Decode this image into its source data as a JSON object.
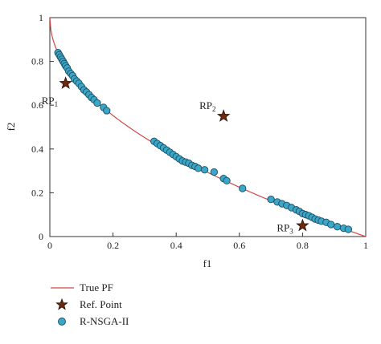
{
  "chart_data": {
    "type": "scatter",
    "xlabel": "f1",
    "ylabel": "f2",
    "xlim": [
      0,
      1
    ],
    "ylim": [
      0,
      1
    ],
    "xticks": [
      "0",
      "0.2",
      "0.4",
      "0.6",
      "0.8",
      "1"
    ],
    "yticks": [
      "0",
      "0.2",
      "0.4",
      "0.6",
      "0.8",
      "1"
    ],
    "grid": false,
    "legend_position": "bottom-left, below plot",
    "legend": {
      "true_pf": "True PF",
      "ref_point": "Ref. Point",
      "r_nsga": "R-NSGA-II"
    },
    "colors": {
      "true_pf": "#d04848",
      "ref_point_fill": "#6b2a10",
      "ref_point_edge": "#2a1005",
      "r_nsga_fill": "#3aa6c8",
      "r_nsga_edge": "#1e4e62"
    },
    "true_pf_function": "f2 = 1 - sqrt(f1)",
    "ref_points": [
      {
        "label": "RP",
        "sub": "1",
        "x": 0.05,
        "y": 0.7
      },
      {
        "label": "RP",
        "sub": "2",
        "x": 0.55,
        "y": 0.55
      },
      {
        "label": "RP",
        "sub": "3",
        "x": 0.8,
        "y": 0.05
      }
    ],
    "series": [
      {
        "name": "R-NSGA-II",
        "points": [
          [
            0.026,
            0.84
          ],
          [
            0.03,
            0.83
          ],
          [
            0.034,
            0.82
          ],
          [
            0.038,
            0.81
          ],
          [
            0.042,
            0.8
          ],
          [
            0.046,
            0.79
          ],
          [
            0.05,
            0.78
          ],
          [
            0.055,
            0.77
          ],
          [
            0.06,
            0.755
          ],
          [
            0.066,
            0.745
          ],
          [
            0.072,
            0.735
          ],
          [
            0.078,
            0.72
          ],
          [
            0.085,
            0.71
          ],
          [
            0.092,
            0.7
          ],
          [
            0.1,
            0.685
          ],
          [
            0.108,
            0.67
          ],
          [
            0.116,
            0.66
          ],
          [
            0.124,
            0.648
          ],
          [
            0.132,
            0.635
          ],
          [
            0.14,
            0.625
          ],
          [
            0.15,
            0.61
          ],
          [
            0.17,
            0.59
          ],
          [
            0.18,
            0.575
          ],
          [
            0.33,
            0.435
          ],
          [
            0.34,
            0.425
          ],
          [
            0.35,
            0.415
          ],
          [
            0.36,
            0.405
          ],
          [
            0.37,
            0.395
          ],
          [
            0.38,
            0.385
          ],
          [
            0.39,
            0.375
          ],
          [
            0.4,
            0.365
          ],
          [
            0.41,
            0.355
          ],
          [
            0.42,
            0.345
          ],
          [
            0.43,
            0.34
          ],
          [
            0.44,
            0.335
          ],
          [
            0.45,
            0.325
          ],
          [
            0.46,
            0.32
          ],
          [
            0.47,
            0.312
          ],
          [
            0.49,
            0.305
          ],
          [
            0.52,
            0.295
          ],
          [
            0.55,
            0.265
          ],
          [
            0.56,
            0.255
          ],
          [
            0.61,
            0.22
          ],
          [
            0.7,
            0.17
          ],
          [
            0.72,
            0.158
          ],
          [
            0.735,
            0.15
          ],
          [
            0.75,
            0.142
          ],
          [
            0.765,
            0.132
          ],
          [
            0.78,
            0.122
          ],
          [
            0.79,
            0.115
          ],
          [
            0.8,
            0.105
          ],
          [
            0.81,
            0.1
          ],
          [
            0.82,
            0.095
          ],
          [
            0.83,
            0.088
          ],
          [
            0.84,
            0.08
          ],
          [
            0.85,
            0.075
          ],
          [
            0.86,
            0.07
          ],
          [
            0.875,
            0.065
          ],
          [
            0.89,
            0.055
          ],
          [
            0.91,
            0.045
          ],
          [
            0.93,
            0.038
          ],
          [
            0.945,
            0.033
          ]
        ]
      }
    ]
  }
}
